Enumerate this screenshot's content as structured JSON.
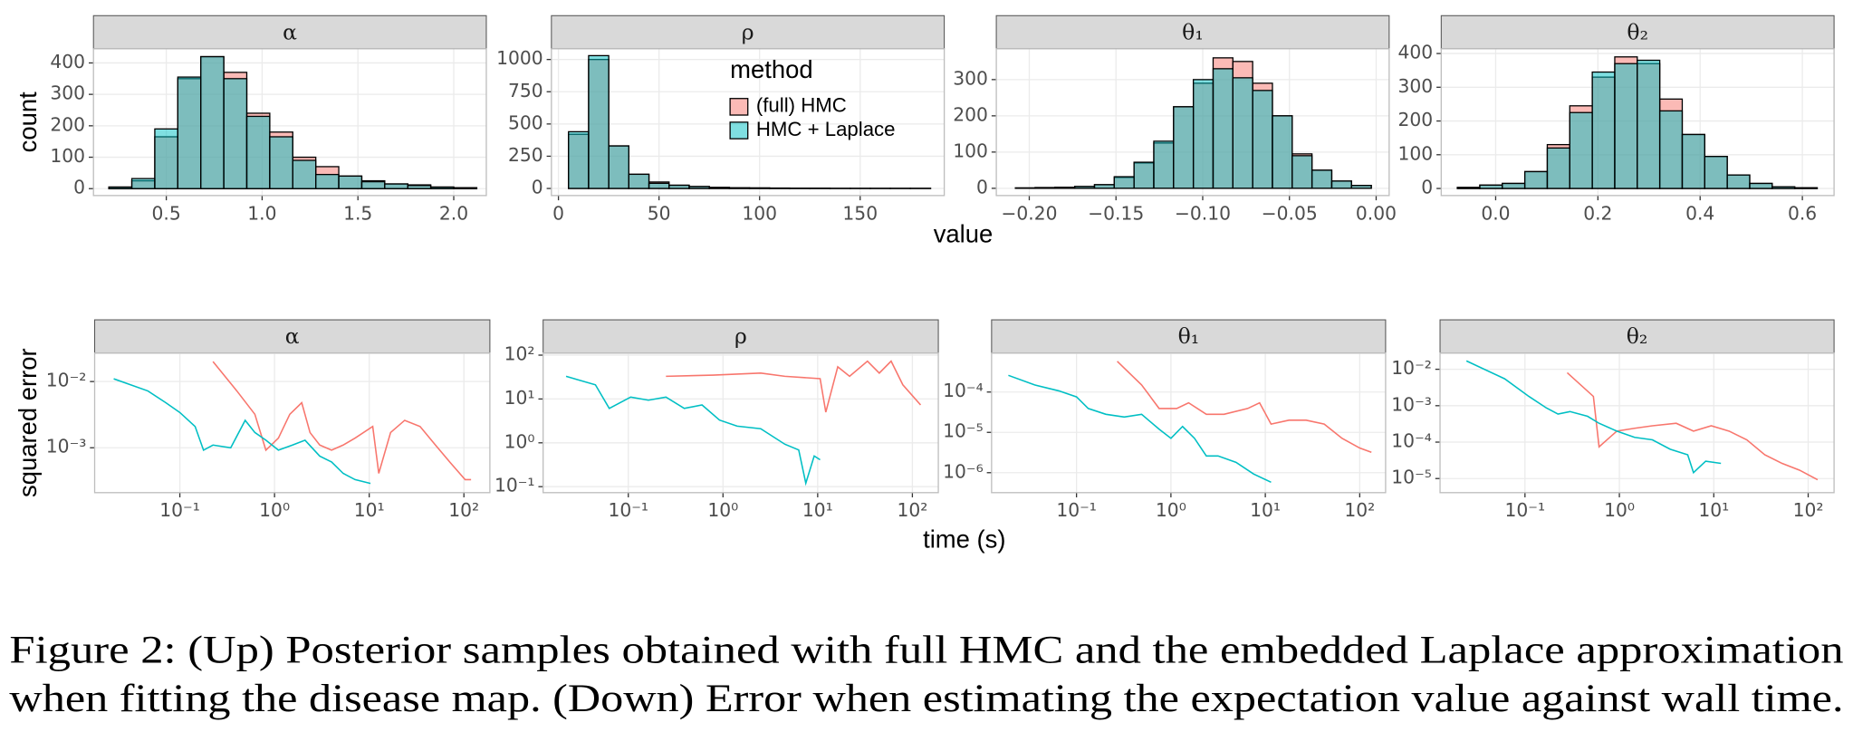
{
  "figure": {
    "top_ylabel": "count",
    "top_xlabel": "value",
    "bottom_ylabel": "squared error",
    "bottom_xlabel": "time (s)",
    "caption": [
      "Figure 2: (Up) Posterior samples obtained with full HMC and the embedded Laplace approximation",
      "when fitting the disease map. (Down) Error when estimating the expectation value against wall time."
    ]
  },
  "chart_data": [
    {
      "type": "histogram",
      "title": "α",
      "grid": true,
      "bar_alpha": 0.5,
      "bins": [
        0.2,
        0.32,
        0.44,
        0.56,
        0.68,
        0.8,
        0.92,
        1.04,
        1.16,
        1.28,
        1.4,
        1.52,
        1.64,
        1.76,
        1.88,
        2.0,
        2.12
      ],
      "series": [
        {
          "name": "(full) HMC",
          "color": "#F8766D",
          "values": [
            5,
            25,
            165,
            350,
            420,
            370,
            240,
            180,
            100,
            70,
            40,
            25,
            15,
            12,
            5,
            3
          ]
        },
        {
          "name": "HMC + Laplace",
          "color": "#00BFC4",
          "values": [
            5,
            32,
            190,
            355,
            420,
            350,
            230,
            165,
            90,
            45,
            40,
            22,
            15,
            10,
            5,
            3
          ]
        }
      ],
      "xlim": [
        0.12,
        2.17
      ],
      "xticks": [
        0.5,
        {
          "value": 1,
          "label": "1.0"
        },
        1.5,
        {
          "value": 2,
          "label": "2.0"
        }
      ],
      "ylim": [
        -22,
        445
      ],
      "yticks": [
        0,
        100,
        200,
        300,
        400
      ]
    },
    {
      "type": "histogram",
      "title": "ρ",
      "grid": true,
      "bar_alpha": 0.5,
      "legend": {
        "title": "method",
        "position": "top-right"
      },
      "bins": [
        5,
        15,
        25,
        35,
        45,
        55,
        65,
        75,
        85,
        95,
        105,
        115,
        125,
        135,
        145,
        155,
        165,
        175,
        185
      ],
      "series": [
        {
          "name": "(full) HMC",
          "color": "#F8766D",
          "values": [
            420,
            1000,
            330,
            110,
            50,
            25,
            15,
            8,
            5,
            4,
            3,
            2,
            2,
            1,
            1,
            1,
            1,
            1
          ]
        },
        {
          "name": "HMC + Laplace",
          "color": "#00BFC4",
          "values": [
            440,
            1030,
            330,
            110,
            40,
            25,
            15,
            8,
            5,
            4,
            3,
            2,
            2,
            1,
            1,
            1,
            1,
            1
          ]
        }
      ],
      "xlim": [
        -3.5,
        191.8
      ],
      "xticks": [
        0,
        50,
        100,
        150
      ],
      "ylim": [
        -55,
        1083
      ],
      "yticks": [
        0,
        250,
        500,
        750,
        1000
      ]
    },
    {
      "type": "histogram",
      "title": "θ₁",
      "grid": true,
      "bar_alpha": 0.5,
      "bins": [
        -0.208,
        -0.1966,
        -0.1852,
        -0.1738,
        -0.1624,
        -0.151,
        -0.1396,
        -0.1282,
        -0.1168,
        -0.1054,
        -0.094,
        -0.0826,
        -0.0712,
        -0.0598,
        -0.0484,
        -0.037,
        -0.0256,
        -0.0142,
        -0.0028
      ],
      "series": [
        {
          "name": "(full) HMC",
          "color": "#F8766D",
          "values": [
            1,
            2,
            3,
            5,
            10,
            30,
            70,
            125,
            225,
            290,
            360,
            350,
            290,
            200,
            95,
            50,
            20,
            8
          ]
        },
        {
          "name": "HMC + Laplace",
          "color": "#00BFC4",
          "values": [
            1,
            2,
            3,
            5,
            10,
            32,
            72,
            130,
            225,
            300,
            330,
            305,
            270,
            200,
            90,
            50,
            20,
            8
          ]
        }
      ],
      "xlim": [
        -0.219,
        0.0075
      ],
      "xticks": [
        {
          "value": -0.2,
          "label": "−0.20"
        },
        {
          "value": -0.15,
          "label": "−0.15"
        },
        {
          "value": -0.1,
          "label": "−0.10"
        },
        {
          "value": -0.05,
          "label": "−0.05"
        },
        {
          "value": 0,
          "label": "0.00"
        }
      ],
      "ylim": [
        -20,
        385
      ],
      "yticks": [
        0,
        100,
        200,
        300
      ]
    },
    {
      "type": "histogram",
      "title": "θ₂",
      "grid": true,
      "bar_alpha": 0.5,
      "bins": [
        -0.075,
        -0.031,
        0.013,
        0.057,
        0.101,
        0.145,
        0.189,
        0.233,
        0.277,
        0.321,
        0.365,
        0.409,
        0.453,
        0.497,
        0.541,
        0.585,
        0.629
      ],
      "series": [
        {
          "name": "(full) HMC",
          "color": "#F8766D",
          "values": [
            3,
            10,
            15,
            50,
            130,
            245,
            330,
            390,
            370,
            265,
            160,
            95,
            40,
            15,
            5,
            2
          ]
        },
        {
          "name": "HMC + Laplace",
          "color": "#00BFC4",
          "values": [
            3,
            10,
            15,
            50,
            120,
            225,
            345,
            370,
            380,
            230,
            160,
            95,
            40,
            15,
            5,
            2
          ]
        }
      ],
      "xlim": [
        -0.1065,
        0.662
      ],
      "xticks": [
        {
          "value": 0,
          "label": "0.0"
        },
        0.2,
        0.4,
        0.6
      ],
      "ylim": [
        -21,
        414
      ],
      "yticks": [
        0,
        100,
        200,
        300,
        400
      ]
    },
    {
      "type": "line",
      "title": "α",
      "grid": true,
      "xscale": "log",
      "yscale": "log",
      "series": [
        {
          "name": "(full) HMC",
          "color": "#F8766D",
          "x": [
            0.224,
            0.4,
            0.62,
            0.81,
            1.1,
            1.45,
            1.94,
            2.37,
            3.0,
            4.0,
            5.3,
            7.1,
            10.9,
            12.6,
            16.8,
            23.7,
            34.4,
            50,
            70.8,
            103,
            119
          ],
          "values": [
            0.02,
            0.0072,
            0.0032,
            0.00092,
            0.0014,
            0.0032,
            0.0048,
            0.0017,
            0.0011,
            0.00092,
            0.0011,
            0.0014,
            0.0021,
            0.00041,
            0.0017,
            0.0026,
            0.0021,
            0.0011,
            0.00061,
            0.00033,
            0.00033
          ]
        },
        {
          "name": "HMC + Laplace",
          "color": "#00BFC4",
          "x": [
            0.02,
            0.046,
            0.071,
            0.1,
            0.145,
            0.178,
            0.224,
            0.345,
            0.49,
            0.62,
            0.81,
            1.1,
            1.55,
            2.1,
            3.0,
            4.0,
            5.3,
            7.1,
            10.3
          ],
          "values": [
            0.011,
            0.0072,
            0.0048,
            0.0034,
            0.0021,
            0.00092,
            0.0011,
            0.001,
            0.0026,
            0.0017,
            0.0013,
            0.00092,
            0.0011,
            0.0013,
            0.00075,
            0.00061,
            0.00041,
            0.00033,
            0.00029
          ]
        }
      ],
      "xlim": [
        0.0126,
        188
      ],
      "xticks": [
        {
          "value": 0.1,
          "label": "10⁻¹"
        },
        {
          "value": 1,
          "label": "10⁰"
        },
        {
          "value": 10,
          "label": "10¹"
        },
        {
          "value": 100,
          "label": "10²"
        }
      ],
      "ylim": [
        0.00021,
        0.027
      ],
      "yticks": [
        {
          "value": 0.01,
          "label": "10⁻²"
        },
        {
          "value": 0.001,
          "label": "10⁻³"
        }
      ]
    },
    {
      "type": "line",
      "title": "ρ",
      "grid": true,
      "xscale": "log",
      "yscale": "log",
      "series": [
        {
          "name": "(full) HMC",
          "color": "#F8766D",
          "x": [
            0.25,
            0.79,
            2.5,
            4.5,
            10.6,
            12.2,
            16.3,
            21.7,
            33.5,
            44.7,
            59.6,
            79.4,
            122
          ],
          "values": [
            33,
            35,
            39,
            33,
            29,
            5,
            54,
            33,
            73,
            39,
            73,
            21,
            7.3
          ]
        },
        {
          "name": "HMC + Laplace",
          "color": "#00BFC4",
          "x": [
            0.022,
            0.045,
            0.063,
            0.106,
            0.163,
            0.25,
            0.39,
            0.6,
            0.92,
            1.41,
            2.5,
            4.5,
            6.3,
            7.5,
            9.2,
            10.6
          ],
          "values": [
            33,
            21,
            6.1,
            11,
            9.4,
            11,
            6.1,
            7.3,
            3.3,
            2.4,
            2.1,
            0.93,
            0.69,
            0.12,
            0.5,
            0.41
          ]
        }
      ],
      "xlim": [
        0.0126,
        188
      ],
      "xticks": [
        {
          "value": 0.1,
          "label": "10⁻¹"
        },
        {
          "value": 1,
          "label": "10⁰"
        },
        {
          "value": 10,
          "label": "10¹"
        },
        {
          "value": 100,
          "label": "10²"
        }
      ],
      "ylim": [
        0.073,
        112
      ],
      "yticks": [
        {
          "value": 100,
          "label": "10²"
        },
        {
          "value": 10,
          "label": "10¹"
        },
        {
          "value": 1,
          "label": "10⁰"
        },
        {
          "value": 0.1,
          "label": "10⁻¹"
        }
      ]
    },
    {
      "type": "line",
      "title": "θ₁",
      "grid": true,
      "xscale": "log",
      "yscale": "log",
      "series": [
        {
          "name": "(full) HMC",
          "color": "#F8766D",
          "x": [
            0.27,
            0.49,
            0.75,
            1.15,
            1.54,
            2.37,
            3.65,
            6.5,
            8.7,
            11.5,
            17.8,
            27,
            42,
            65,
            100,
            133
          ],
          "values": [
            0.00058,
            0.00015,
            3.9e-05,
            3.9e-05,
            5.4e-05,
            2.8e-05,
            2.8e-05,
            3.9e-05,
            5.4e-05,
            1.6e-05,
            2e-05,
            2e-05,
            1.6e-05,
            7.1e-06,
            4.1e-06,
            3.2e-06
          ]
        },
        {
          "name": "HMC + Laplace",
          "color": "#00BFC4",
          "x": [
            0.019,
            0.036,
            0.065,
            0.1,
            0.133,
            0.205,
            0.32,
            0.49,
            0.75,
            1.0,
            1.33,
            1.78,
            2.37,
            3.16,
            4.9,
            7.5,
            11.5
          ],
          "values": [
            0.00026,
            0.00015,
            0.000107,
            7.6e-05,
            3.9e-05,
            2.8e-05,
            2.4e-05,
            2.8e-05,
            1.2e-05,
            7.1e-06,
            1.4e-05,
            7.1e-06,
            2.6e-06,
            2.6e-06,
            1.8e-06,
            9.3e-07,
            5.8e-07
          ]
        }
      ],
      "xlim": [
        0.0126,
        188
      ],
      "xticks": [
        {
          "value": 0.1,
          "label": "10⁻¹"
        },
        {
          "value": 1,
          "label": "10⁰"
        },
        {
          "value": 10,
          "label": "10¹"
        },
        {
          "value": 100,
          "label": "10²"
        }
      ],
      "ylim": [
        3.2e-07,
        0.00093
      ],
      "yticks": [
        {
          "value": 0.0001,
          "label": "10⁻⁴"
        },
        {
          "value": 1e-05,
          "label": "10⁻⁵"
        },
        {
          "value": 1e-06,
          "label": "10⁻⁶"
        }
      ]
    },
    {
      "type": "line",
      "title": "θ₂",
      "grid": true,
      "xscale": "log",
      "yscale": "log",
      "series": [
        {
          "name": "(full) HMC",
          "color": "#F8766D",
          "x": [
            0.28,
            0.53,
            0.61,
            0.94,
            1.45,
            2.24,
            4,
            6.1,
            9.4,
            14.5,
            22.4,
            34.6,
            53,
            81,
            126
          ],
          "values": [
            0.008,
            0.0018,
            7.4e-05,
            0.0002,
            0.00024,
            0.00028,
            0.00033,
            0.0002,
            0.00028,
            0.0002,
            0.000115,
            4.5e-05,
            2.6e-05,
            1.7e-05,
            9.3e-06
          ]
        },
        {
          "name": "HMC + Laplace",
          "color": "#00BFC4",
          "x": [
            0.024,
            0.061,
            0.11,
            0.168,
            0.224,
            0.3,
            0.46,
            0.61,
            0.94,
            1.45,
            2.24,
            3.45,
            5.3,
            6.1,
            8.2,
            11.9
          ],
          "values": [
            0.017,
            0.0055,
            0.0018,
            0.00087,
            0.00059,
            0.00069,
            0.00051,
            0.00033,
            0.0002,
            0.000135,
            0.000115,
            6.4e-05,
            4.5e-05,
            1.45e-05,
            3e-05,
            2.6e-05
          ]
        }
      ],
      "xlim": [
        0.0126,
        188
      ],
      "xticks": [
        {
          "value": 0.1,
          "label": "10⁻¹"
        },
        {
          "value": 1,
          "label": "10⁰"
        },
        {
          "value": 10,
          "label": "10¹"
        },
        {
          "value": 100,
          "label": "10²"
        }
      ],
      "ylim": [
        4.1e-06,
        0.028
      ],
      "yticks": [
        {
          "value": 0.01,
          "label": "10⁻²"
        },
        {
          "value": 0.001,
          "label": "10⁻³"
        },
        {
          "value": 0.0001,
          "label": "10⁻⁴"
        },
        {
          "value": 1e-05,
          "label": "10⁻⁵"
        }
      ]
    }
  ]
}
